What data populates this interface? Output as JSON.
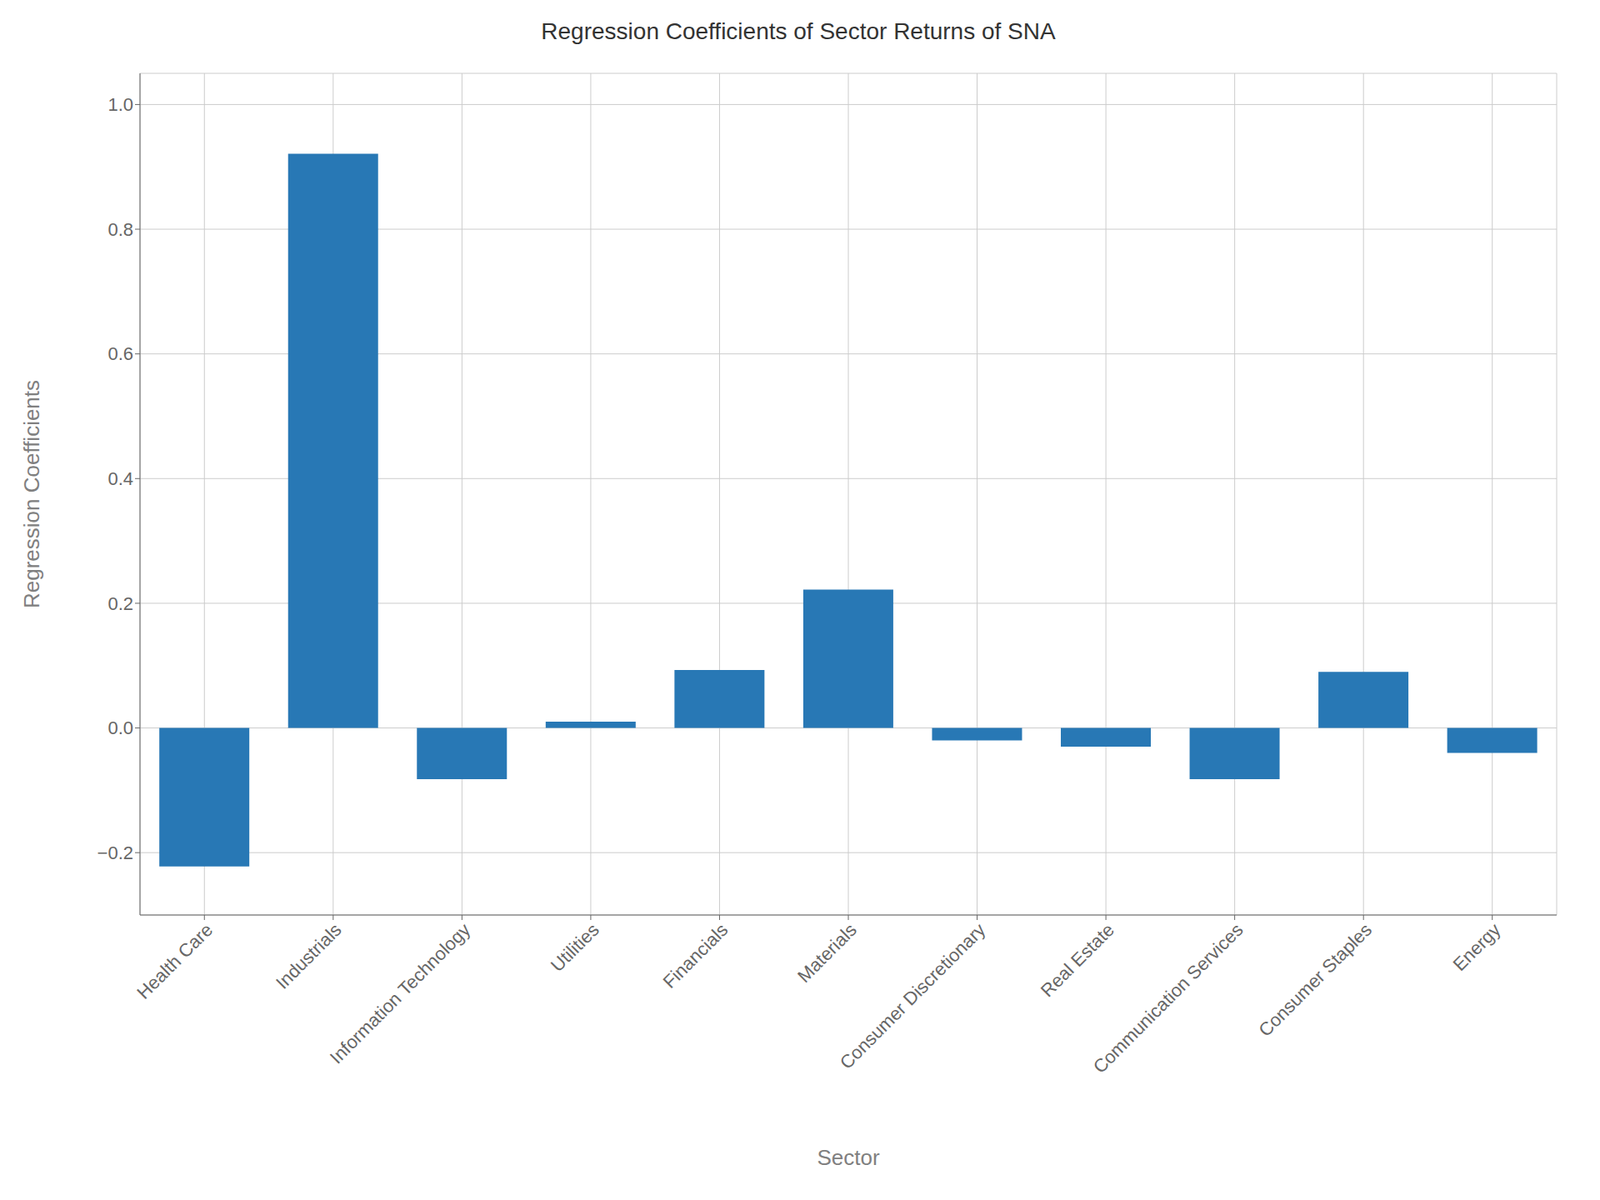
{
  "chart_data": {
    "type": "bar",
    "title": "Regression Coefficients of Sector Returns of SNA",
    "xlabel": "Sector",
    "ylabel": "Regression Coefficients",
    "categories": [
      "Health Care",
      "Industrials",
      "Information Technology",
      "Utilities",
      "Financials",
      "Materials",
      "Consumer Discretionary",
      "Real Estate",
      "Communication Services",
      "Consumer Staples",
      "Energy"
    ],
    "values": [
      -0.222,
      0.921,
      -0.082,
      0.01,
      0.093,
      0.222,
      -0.02,
      -0.03,
      -0.082,
      0.09,
      -0.04
    ],
    "color": "#2878b5",
    "ylim": [
      -0.3,
      1.05
    ],
    "yticks": [
      {
        "value": -0.2,
        "label": "−0.2"
      },
      {
        "value": 0,
        "label": "0.0"
      },
      0.2,
      0.4,
      0.6,
      0.8,
      {
        "value": 1.0,
        "label": "1.0"
      }
    ],
    "grid": true
  }
}
